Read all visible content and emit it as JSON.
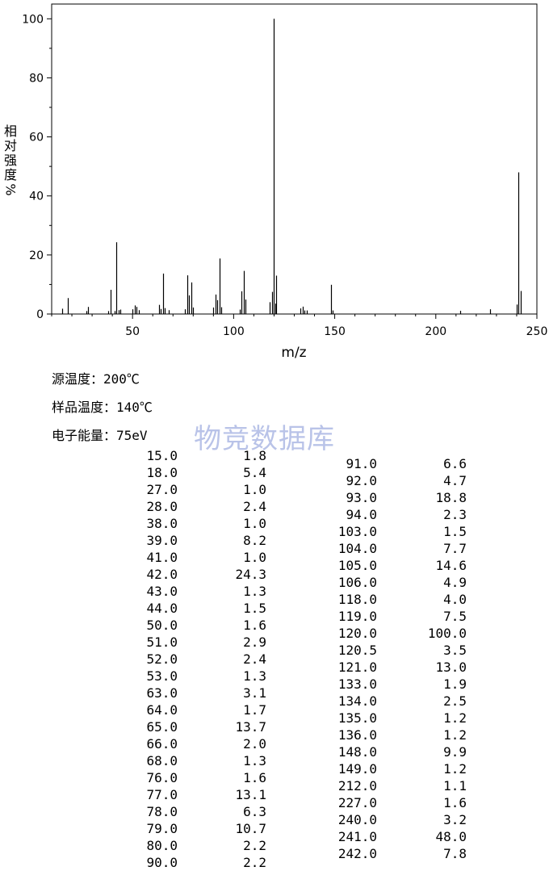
{
  "chart_data": {
    "type": "bar",
    "xlabel": "m/z",
    "ylabel_chars": [
      "相",
      "对",
      "强",
      "度"
    ],
    "ylabel_unit": "%",
    "xlim": [
      10,
      250
    ],
    "ylim": [
      0,
      105
    ],
    "xticks": [
      50,
      100,
      150,
      200,
      250
    ],
    "yticks": [
      0,
      20,
      40,
      60,
      80,
      100
    ],
    "x": [
      15.0,
      18.0,
      27.0,
      28.0,
      38.0,
      39.0,
      41.0,
      42.0,
      43.0,
      44.0,
      50.0,
      51.0,
      52.0,
      53.0,
      63.0,
      64.0,
      65.0,
      66.0,
      68.0,
      76.0,
      77.0,
      78.0,
      79.0,
      80.0,
      90.0,
      91.0,
      92.0,
      93.0,
      94.0,
      103.0,
      104.0,
      105.0,
      106.0,
      118.0,
      119.0,
      120.0,
      120.5,
      121.0,
      133.0,
      134.0,
      135.0,
      136.0,
      148.0,
      149.0,
      212.0,
      227.0,
      240.0,
      241.0,
      242.0
    ],
    "values": [
      1.8,
      5.4,
      1.0,
      2.4,
      1.0,
      8.2,
      1.0,
      24.3,
      1.3,
      1.5,
      1.6,
      2.9,
      2.4,
      1.3,
      3.1,
      1.7,
      13.7,
      2.0,
      1.3,
      1.6,
      13.1,
      6.3,
      10.7,
      2.2,
      2.2,
      6.6,
      4.7,
      18.8,
      2.3,
      1.5,
      7.7,
      14.6,
      4.9,
      4.0,
      7.5,
      100.0,
      3.5,
      13.0,
      1.9,
      2.5,
      1.2,
      1.2,
      9.9,
      1.2,
      1.1,
      1.6,
      3.2,
      48.0,
      7.8
    ]
  },
  "conditions": {
    "source_temp": "源温度：200℃",
    "sample_temp": "样品温度：140℃",
    "electron_energy": "电子能量：75eV"
  },
  "watermark": "物竞数据库",
  "table": {
    "left": [
      [
        "15.0",
        "1.8"
      ],
      [
        "18.0",
        "5.4"
      ],
      [
        "27.0",
        "1.0"
      ],
      [
        "28.0",
        "2.4"
      ],
      [
        "38.0",
        "1.0"
      ],
      [
        "39.0",
        "8.2"
      ],
      [
        "41.0",
        "1.0"
      ],
      [
        "42.0",
        "24.3"
      ],
      [
        "43.0",
        "1.3"
      ],
      [
        "44.0",
        "1.5"
      ],
      [
        "50.0",
        "1.6"
      ],
      [
        "51.0",
        "2.9"
      ],
      [
        "52.0",
        "2.4"
      ],
      [
        "53.0",
        "1.3"
      ],
      [
        "63.0",
        "3.1"
      ],
      [
        "64.0",
        "1.7"
      ],
      [
        "65.0",
        "13.7"
      ],
      [
        "66.0",
        "2.0"
      ],
      [
        "68.0",
        "1.3"
      ],
      [
        "76.0",
        "1.6"
      ],
      [
        "77.0",
        "13.1"
      ],
      [
        "78.0",
        "6.3"
      ],
      [
        "79.0",
        "10.7"
      ],
      [
        "80.0",
        "2.2"
      ],
      [
        "90.0",
        "2.2"
      ]
    ],
    "right": [
      [
        "91.0",
        "6.6"
      ],
      [
        "92.0",
        "4.7"
      ],
      [
        "93.0",
        "18.8"
      ],
      [
        "94.0",
        "2.3"
      ],
      [
        "103.0",
        "1.5"
      ],
      [
        "104.0",
        "7.7"
      ],
      [
        "105.0",
        "14.6"
      ],
      [
        "106.0",
        "4.9"
      ],
      [
        "118.0",
        "4.0"
      ],
      [
        "119.0",
        "7.5"
      ],
      [
        "120.0",
        "100.0"
      ],
      [
        "120.5",
        "3.5"
      ],
      [
        "121.0",
        "13.0"
      ],
      [
        "133.0",
        "1.9"
      ],
      [
        "134.0",
        "2.5"
      ],
      [
        "135.0",
        "1.2"
      ],
      [
        "136.0",
        "1.2"
      ],
      [
        "148.0",
        "9.9"
      ],
      [
        "149.0",
        "1.2"
      ],
      [
        "212.0",
        "1.1"
      ],
      [
        "227.0",
        "1.6"
      ],
      [
        "240.0",
        "3.2"
      ],
      [
        "241.0",
        "48.0"
      ],
      [
        "242.0",
        "7.8"
      ]
    ]
  }
}
